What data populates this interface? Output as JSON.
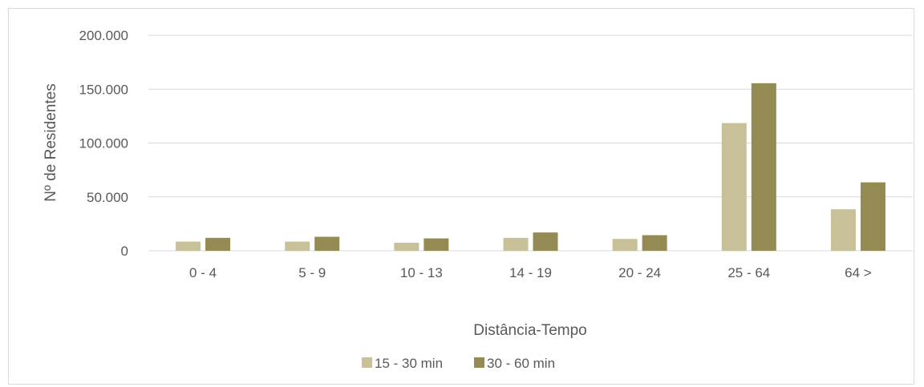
{
  "chart_data": {
    "type": "bar",
    "categories": [
      "0 - 4",
      "5 - 9",
      "10 - 13",
      "14 - 19",
      "20 - 24",
      "25 - 64",
      "64 >"
    ],
    "series": [
      {
        "name": "15 - 30 min",
        "color": "#c8c098",
        "values": [
          8500,
          8500,
          7500,
          12000,
          11000,
          118500,
          38500
        ]
      },
      {
        "name": "30 - 60 min",
        "color": "#948a54",
        "values": [
          12000,
          13000,
          11500,
          17000,
          14500,
          155500,
          63500
        ]
      }
    ],
    "title": "",
    "xlabel": "Distância-Tempo",
    "ylabel": "Nº de Residentes",
    "ylim": [
      0,
      200000
    ],
    "yticks": [
      0,
      50000,
      100000,
      150000,
      200000
    ],
    "ytick_labels": [
      "0",
      "50.000",
      "100.000",
      "150.000",
      "200.000"
    ],
    "grid": true,
    "legend_position": "bottom"
  }
}
